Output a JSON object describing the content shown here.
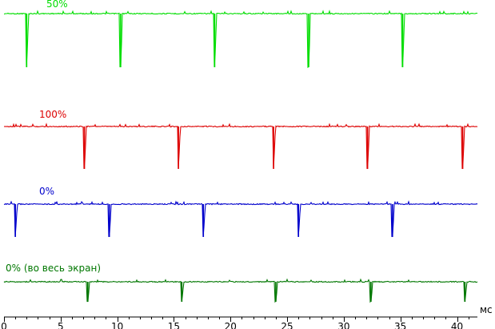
{
  "chart_data": {
    "type": "line",
    "title": "",
    "xlabel": "мс",
    "ylabel": "",
    "xlim": [
      0,
      41.8
    ],
    "x_ticks": [
      0,
      5,
      10,
      15,
      20,
      25,
      30,
      35,
      40
    ],
    "x_tick_labels": [
      "0",
      "5",
      "10",
      "15",
      "20",
      "25",
      "30",
      "35",
      "40"
    ],
    "grid": false,
    "legend": "none",
    "series": [
      {
        "name": "50%",
        "color": "#00dd00",
        "baseline": 1.0,
        "dip_depth": 1.0,
        "dip_times_ms": [
          2.0,
          10.3,
          18.6,
          26.9,
          35.2
        ]
      },
      {
        "name": "100%",
        "color": "#dd0000",
        "baseline": 1.0,
        "dip_depth": 1.0,
        "dip_times_ms": [
          7.1,
          15.4,
          23.8,
          32.1,
          40.5
        ]
      },
      {
        "name": "0%",
        "color": "#0000cc",
        "baseline": 1.0,
        "dip_depth": 1.0,
        "dip_times_ms": [
          1.0,
          9.3,
          17.6,
          26.0,
          34.3
        ]
      },
      {
        "name": "0% (во весь экран)",
        "color": "#007700",
        "baseline": 1.0,
        "dip_depth": 1.0,
        "dip_times_ms": [
          7.4,
          15.7,
          24.0,
          32.4,
          40.7
        ]
      }
    ]
  }
}
